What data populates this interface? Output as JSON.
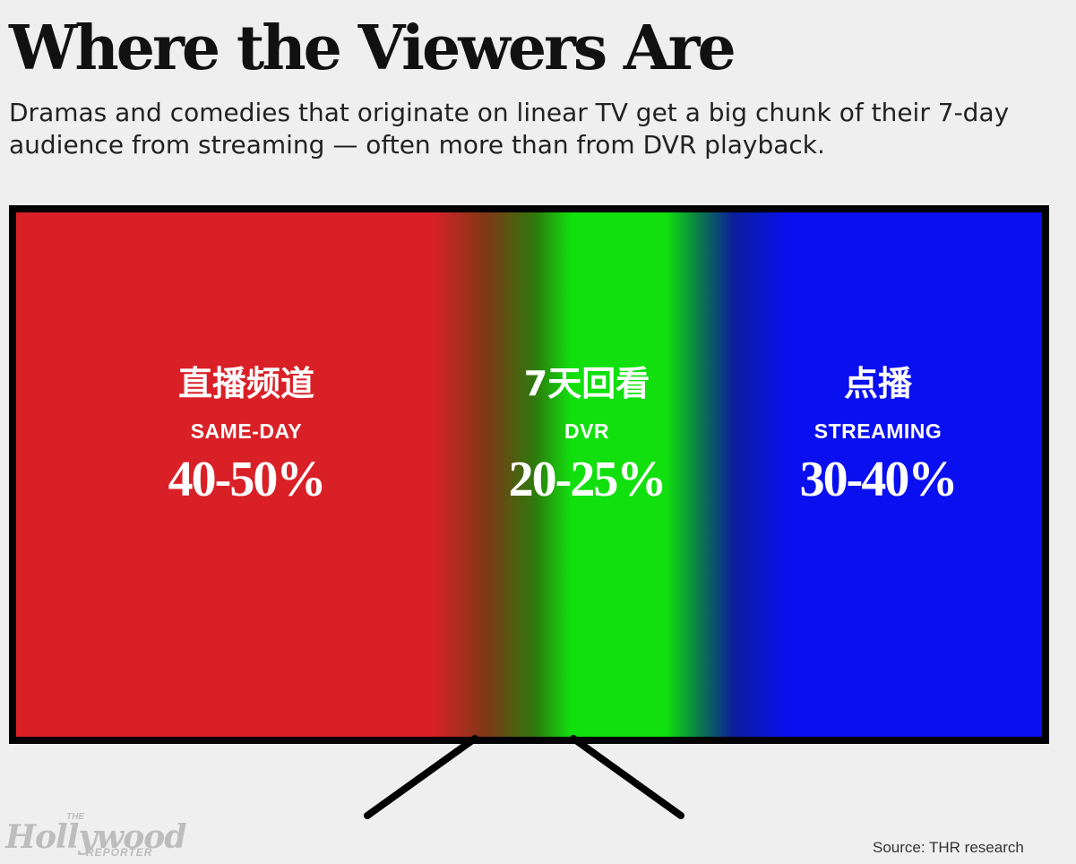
{
  "header": {
    "title": "Where the Viewers Are",
    "subtitle": "Dramas and comedies that originate on linear TV get a big chunk of their 7-day audience from streaming — often more than from DVR playback."
  },
  "chart_data": {
    "type": "bar",
    "categories": [
      "SAME-DAY",
      "DVR",
      "STREAMING"
    ],
    "series": [
      {
        "values": [
          45,
          22.5,
          35
        ],
        "ranges": [
          [
            40,
            50
          ],
          [
            20,
            25
          ],
          [
            30,
            40
          ]
        ],
        "labels": [
          "40-50%",
          "20-25%",
          "30-40%"
        ],
        "chinese_labels": [
          "直播频道",
          "7天回看",
          "点播"
        ],
        "colors": [
          "#d92027",
          "#11e00e",
          "#0a0ff0"
        ]
      }
    ],
    "title": "Where the Viewers Are",
    "xlabel": "",
    "ylabel": ""
  },
  "footer": {
    "logo_main": "Hollywood",
    "logo_the": "THE",
    "logo_reporter": "REPORTER",
    "source": "Source: THR research"
  }
}
